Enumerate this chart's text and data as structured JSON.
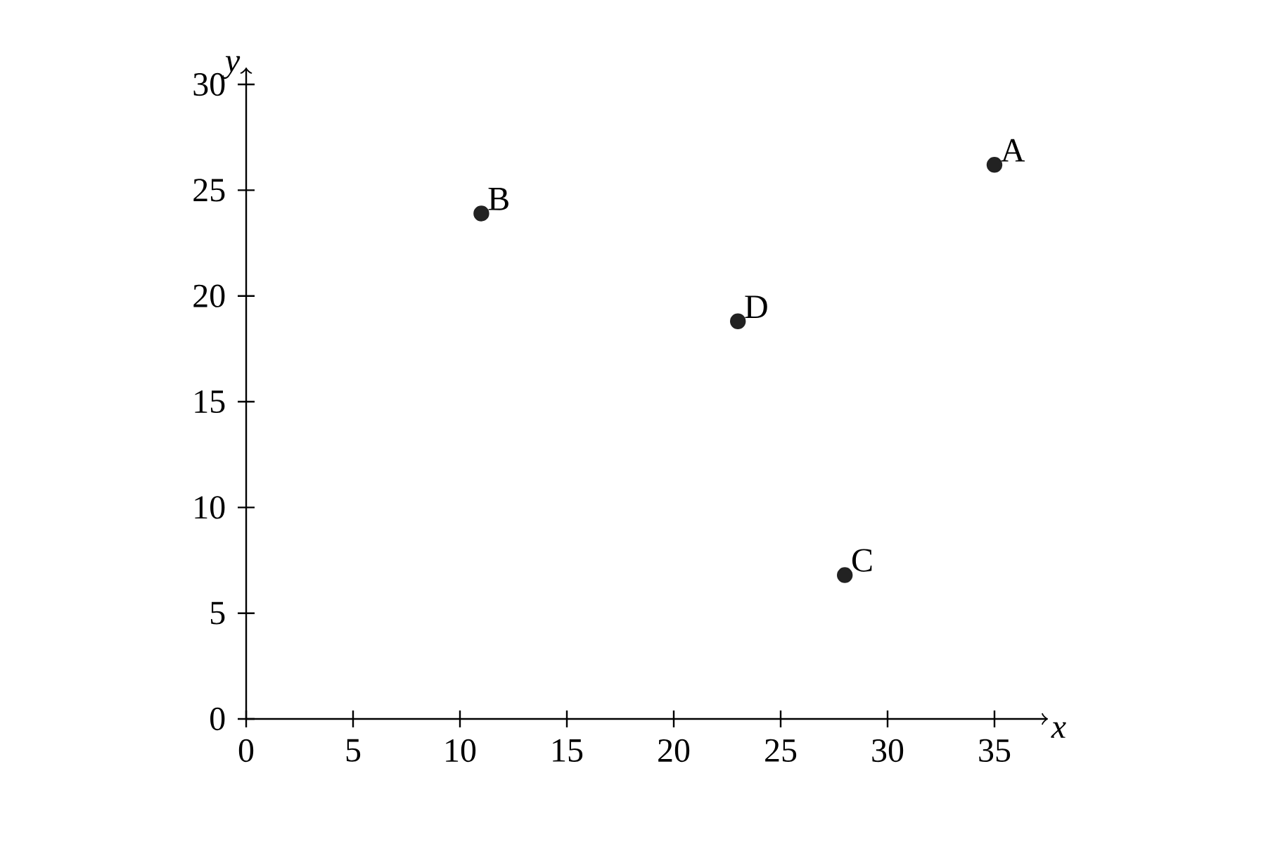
{
  "chart_data": {
    "type": "scatter",
    "xlabel": "x",
    "ylabel": "y",
    "x": [
      35,
      11,
      28,
      23
    ],
    "values": [
      26.2,
      23.9,
      6.8,
      18.8
    ],
    "color": "#222222",
    "xlim": [
      0,
      37.5
    ],
    "ylim": [
      0,
      30.8
    ],
    "xticks": [
      0,
      5,
      10,
      15,
      20,
      25,
      30,
      35
    ],
    "yticks": [
      0,
      5,
      10,
      15,
      20,
      25,
      30
    ],
    "annotations": [
      {
        "text": "A",
        "x": 35,
        "y": 26.2
      },
      {
        "text": "B",
        "x": 11,
        "y": 23.9
      },
      {
        "text": "C",
        "x": 28,
        "y": 6.8
      },
      {
        "text": "D",
        "x": 23,
        "y": 18.8
      }
    ]
  }
}
